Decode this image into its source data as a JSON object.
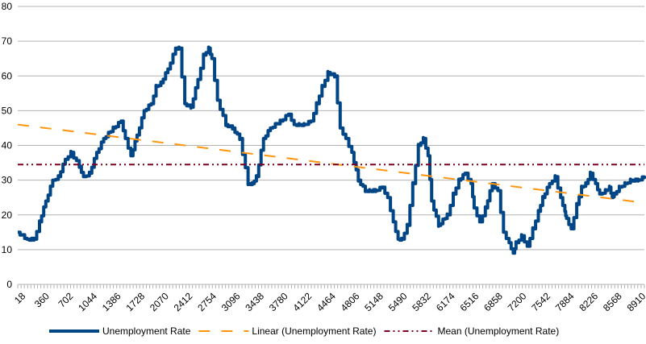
{
  "chart_data": {
    "type": "line",
    "title": "",
    "xlabel": "",
    "ylabel": "",
    "ylim": [
      0,
      80
    ],
    "y_ticks": [
      0,
      10,
      20,
      30,
      40,
      50,
      60,
      70,
      80
    ],
    "x_range": [
      18,
      9000
    ],
    "x_tick_labels": [
      "18",
      "360",
      "702",
      "1044",
      "1386",
      "1728",
      "2070",
      "2412",
      "2754",
      "3096",
      "3438",
      "3780",
      "4122",
      "4464",
      "4806",
      "5148",
      "5490",
      "5832",
      "6174",
      "6516",
      "6858",
      "7200",
      "7542",
      "7884",
      "8226",
      "8568",
      "8910"
    ],
    "grid": "horizontal",
    "legend_position": "bottom",
    "colors": {
      "unemployment": "#004586",
      "linear": "#ff950e",
      "mean": "#7e0021",
      "grid": "#b3b3b3"
    },
    "series": [
      {
        "name": "Unemployment Rate",
        "style": "solid",
        "x": [
          18,
          150,
          250,
          330,
          420,
          520,
          600,
          700,
          780,
          900,
          960,
          1044,
          1150,
          1250,
          1386,
          1500,
          1560,
          1640,
          1728,
          1830,
          1930,
          2000,
          2070,
          2170,
          2280,
          2330,
          2412,
          2500,
          2600,
          2680,
          2754,
          2800,
          2880,
          3000,
          3096,
          3200,
          3320,
          3380,
          3438,
          3540,
          3640,
          3780,
          3900,
          3980,
          4050,
          4122,
          4220,
          4300,
          4380,
          4464,
          4560,
          4640,
          4720,
          4806,
          4900,
          5000,
          5060,
          5148,
          5240,
          5320,
          5400,
          5470,
          5520,
          5600,
          5680,
          5760,
          5832,
          5900,
          5950,
          6050,
          6174,
          6260,
          6340,
          6430,
          6516,
          6560,
          6640,
          6720,
          6820,
          6900,
          6980,
          7060,
          7120,
          7160,
          7240,
          7320,
          7400,
          7480,
          7542,
          7640,
          7720,
          7800,
          7860,
          7884,
          7950,
          8030,
          8100,
          8160,
          8226,
          8300,
          8360,
          8440,
          8500,
          8540,
          8568,
          8640,
          8720,
          8800,
          8910,
          9000
        ],
        "y": [
          15,
          13,
          13,
          18,
          24,
          30,
          31,
          36,
          38,
          34,
          31,
          32,
          38,
          42,
          45,
          47,
          42,
          37,
          43,
          50,
          52,
          57,
          58,
          62,
          68,
          68,
          52,
          51,
          59,
          66,
          68,
          65,
          53,
          46,
          45,
          42,
          29,
          29,
          31,
          42,
          45,
          47,
          49,
          46,
          46,
          46,
          47,
          52,
          57,
          61,
          60,
          45,
          42,
          38,
          30,
          27,
          27,
          27,
          28,
          25,
          18,
          13,
          13,
          17,
          29,
          40,
          42,
          37,
          24,
          17,
          20,
          26,
          30,
          32,
          29,
          22,
          18,
          22,
          29,
          27,
          15,
          12,
          9,
          12,
          14,
          11,
          16,
          21,
          25,
          29,
          31,
          25,
          21,
          19,
          16,
          23,
          28,
          29,
          32,
          29,
          26,
          27,
          28,
          25,
          26,
          28,
          29,
          30,
          30,
          31
        ]
      },
      {
        "name": "Linear (Unemployment Rate)",
        "style": "dashed",
        "x": [
          18,
          9000
        ],
        "y": [
          46,
          23.5
        ]
      },
      {
        "name": "Mean (Unemployment Rate)",
        "style": "dash-dot-dot",
        "x": [
          18,
          9000
        ],
        "y": [
          34.5,
          34.5
        ]
      }
    ]
  }
}
